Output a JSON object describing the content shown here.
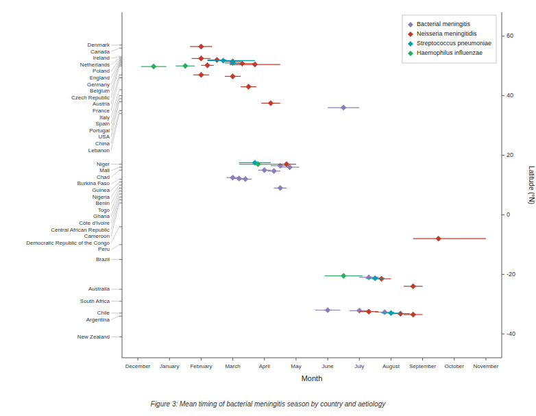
{
  "chart_data": {
    "type": "scatter",
    "marker": "diamond",
    "xlabel": "Month",
    "ylabel": "Latitude (°N)",
    "caption": "Figure 3: Mean timing of bacterial meningitis season by country and aetiology",
    "xlim": [
      -1.5,
      10.5
    ],
    "xticks": [
      {
        "value": -1,
        "label": "December"
      },
      {
        "value": 0,
        "label": "January"
      },
      {
        "value": 1,
        "label": "February"
      },
      {
        "value": 2,
        "label": "March"
      },
      {
        "value": 3,
        "label": "April"
      },
      {
        "value": 4,
        "label": "May"
      },
      {
        "value": 5,
        "label": "June"
      },
      {
        "value": 6,
        "label": "July"
      },
      {
        "value": 7,
        "label": "August"
      },
      {
        "value": 8,
        "label": "September"
      },
      {
        "value": 9,
        "label": "October"
      },
      {
        "value": 10,
        "label": "November"
      }
    ],
    "ylim": [
      -48,
      68
    ],
    "yticks": [
      -40,
      -20,
      0,
      20,
      40,
      60
    ],
    "y2lim": [
      -48,
      68
    ],
    "y2ticks": [
      {
        "value": 57,
        "label": "Denmark"
      },
      {
        "value": 53,
        "label": "Ireland"
      },
      {
        "value": 51,
        "label": "Germany"
      },
      {
        "value": 52.5,
        "label": "Netherlands"
      },
      {
        "value": 52,
        "label": "Poland"
      },
      {
        "value": 51.5,
        "label": "England"
      },
      {
        "value": 50.5,
        "label": "Belgium"
      },
      {
        "value": 50,
        "label": "Czech Republic"
      },
      {
        "value": 46,
        "label": "France"
      },
      {
        "value": 47,
        "label": "Austria"
      },
      {
        "value": 42,
        "label": "Italy"
      },
      {
        "value": 56,
        "label": "Canada"
      },
      {
        "value": 38,
        "label": "USA"
      },
      {
        "value": 40,
        "label": "Spain"
      },
      {
        "value": 39,
        "label": "Portugal"
      },
      {
        "value": 34,
        "label": "Lebanon"
      },
      {
        "value": 35,
        "label": "China"
      },
      {
        "value": 17,
        "label": "Niger"
      },
      {
        "value": 16,
        "label": "Mali"
      },
      {
        "value": 12,
        "label": "Burkina Faso"
      },
      {
        "value": 15,
        "label": "Chad"
      },
      {
        "value": 11,
        "label": "Guinea"
      },
      {
        "value": 9,
        "label": "Benin"
      },
      {
        "value": 10,
        "label": "Nigeria"
      },
      {
        "value": 8,
        "label": "Togo"
      },
      {
        "value": 7,
        "label": "Ghana"
      },
      {
        "value": 6,
        "label": "Côte d'Ivoire"
      },
      {
        "value": 5,
        "label": "Central African Republic"
      },
      {
        "value": 4,
        "label": "Cameroon"
      },
      {
        "value": -4,
        "label": "Democratic Republic of the Congo"
      },
      {
        "value": -10,
        "label": "Peru"
      },
      {
        "value": -15,
        "label": "Brazil"
      },
      {
        "value": -29,
        "label": "South Africa"
      },
      {
        "value": -33,
        "label": "Chile"
      },
      {
        "value": -25,
        "label": "Australia"
      },
      {
        "value": -34,
        "label": "Argentina"
      },
      {
        "value": -41,
        "label": "New Zealand"
      }
    ],
    "grid": false,
    "legend": "upper right",
    "series": [
      {
        "name": "Bacterial meningitis",
        "color": "#8B7DB5",
        "x": [
          5.5,
          3.5,
          3.8,
          2.0,
          2.2,
          2.4,
          3.0,
          3.3,
          3.5,
          6.3,
          5.0,
          6.0,
          6.8
        ],
        "values": [
          36.0,
          16.5,
          16.0,
          12.5,
          12.2,
          12.0,
          15.0,
          14.7,
          9.0,
          -21.0,
          -32.0,
          -32.2,
          -32.7
        ],
        "xerr_minus": [
          0.5,
          0.3,
          0.3,
          0.2,
          0.2,
          0.2,
          0.2,
          0.2,
          0.2,
          0.3,
          0.4,
          0.3,
          0.3
        ],
        "xerr_plus": [
          0.5,
          0.3,
          0.3,
          0.2,
          0.2,
          0.2,
          0.2,
          0.2,
          0.2,
          0.3,
          0.4,
          0.3,
          0.3
        ]
      },
      {
        "name": "Neisseria meningitidis",
        "color": "#C0392B",
        "x": [
          1.0,
          1.0,
          1.5,
          2.0,
          2.3,
          2.7,
          1.2,
          1.0,
          2.0,
          2.5,
          3.2,
          3.7,
          8.5,
          6.7,
          7.7,
          6.3,
          7.3,
          7.7
        ],
        "values": [
          56.5,
          52.5,
          52.0,
          51.5,
          50.8,
          50.5,
          50.2,
          47.0,
          46.5,
          43.0,
          37.5,
          17.0,
          -8.0,
          -21.5,
          -24.0,
          -32.5,
          -33.2,
          -33.5
        ],
        "xerr_minus": [
          0.35,
          0.3,
          0.3,
          0.25,
          0.4,
          0.8,
          0.2,
          0.25,
          0.25,
          0.25,
          0.3,
          0.3,
          0.8,
          0.3,
          0.3,
          0.3,
          0.3,
          0.3
        ],
        "xerr_plus": [
          0.35,
          0.3,
          0.3,
          0.25,
          0.4,
          0.8,
          0.2,
          0.25,
          0.25,
          0.25,
          0.3,
          0.3,
          1.5,
          0.3,
          0.3,
          0.3,
          0.3,
          0.3
        ]
      },
      {
        "name": "Streptococcus pneumoniae",
        "color": "#00A0B0",
        "x": [
          1.7,
          2.0,
          2.7,
          6.5,
          7.0
        ],
        "values": [
          51.8,
          51.0,
          17.5,
          -21.3,
          -33.0
        ],
        "xerr_minus": [
          0.5,
          0.25,
          0.5,
          0.3,
          0.3
        ],
        "xerr_plus": [
          1.0,
          0.25,
          0.5,
          0.3,
          0.3
        ]
      },
      {
        "name": "Haemophilus influenzae",
        "color": "#27AE60",
        "x": [
          0.5,
          -0.5,
          2.8,
          5.5
        ],
        "values": [
          50.0,
          49.8,
          17.0,
          -20.5
        ],
        "xerr_minus": [
          0.3,
          0.4,
          0.6,
          0.6
        ],
        "xerr_plus": [
          0.3,
          0.4,
          0.6,
          0.6
        ]
      }
    ]
  }
}
